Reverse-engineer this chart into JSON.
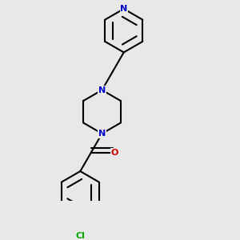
{
  "background_color": "#e8e8e8",
  "bond_color": "#000000",
  "bond_width": 1.5,
  "atom_colors": {
    "N": "#0000cc",
    "O": "#cc0000",
    "Cl": "#00aa00",
    "C": "#000000"
  },
  "font_size_atom": 8,
  "figure_size": [
    3.0,
    3.0
  ],
  "dpi": 100,
  "xlim": [
    0.05,
    0.75
  ],
  "ylim": [
    0.0,
    1.05
  ]
}
